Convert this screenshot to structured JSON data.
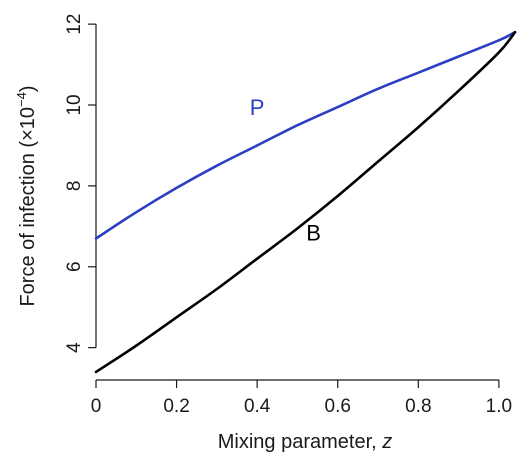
{
  "chart_data": {
    "type": "line",
    "xlabel": "Mixing parameter,",
    "xlabel_var": "z",
    "ylabel": "Force of infection (×10",
    "ylabel_exp": "−4",
    "ylabel_close": ")",
    "xlim": [
      0,
      1.04
    ],
    "ylim": [
      3.2,
      12.3
    ],
    "x_ticks": [
      0,
      0.2,
      0.4,
      0.6,
      0.8,
      1.0
    ],
    "x_tick_labels": [
      "0",
      "0.2",
      "0.4",
      "0.6",
      "0.8",
      "1.0"
    ],
    "y_ticks": [
      4,
      6,
      8,
      10,
      12
    ],
    "y_tick_labels": [
      "4",
      "6",
      "8",
      "10",
      "12"
    ],
    "grid": false,
    "series": [
      {
        "name": "P",
        "color": "#2b3fc4",
        "label_at": [
          0.4,
          9.75
        ],
        "x": [
          0,
          0.1,
          0.2,
          0.3,
          0.4,
          0.5,
          0.6,
          0.7,
          0.8,
          0.9,
          1.0,
          1.04
        ],
        "y": [
          6.7,
          7.35,
          7.95,
          8.5,
          9.0,
          9.5,
          9.95,
          10.4,
          10.8,
          11.2,
          11.6,
          11.8
        ]
      },
      {
        "name": "B",
        "color": "#000000",
        "label_at": [
          0.54,
          6.65
        ],
        "x": [
          0,
          0.1,
          0.2,
          0.3,
          0.4,
          0.5,
          0.6,
          0.7,
          0.8,
          0.9,
          1.0,
          1.04
        ],
        "y": [
          3.4,
          4.05,
          4.75,
          5.45,
          6.2,
          6.95,
          7.75,
          8.6,
          9.45,
          10.35,
          11.3,
          11.8
        ]
      }
    ]
  }
}
